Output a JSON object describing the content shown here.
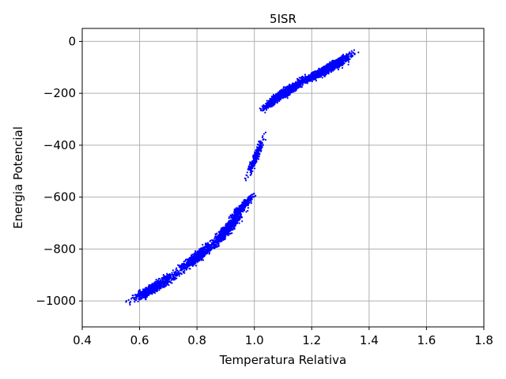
{
  "chart_data": {
    "type": "scatter",
    "title": "5ISR",
    "xlabel": "Temperatura Relativa",
    "ylabel": "Energia Potencial",
    "xlim": [
      0.4,
      1.8
    ],
    "ylim": [
      -1100,
      50
    ],
    "xticks": [
      "0.4",
      "0.6",
      "0.8",
      "1.0",
      "1.2",
      "1.4",
      "1.6",
      "1.8"
    ],
    "yticks": [
      "0",
      "−200",
      "−400",
      "−600",
      "−800",
      "−1000"
    ],
    "grid": true,
    "marker_color": "#0000ff",
    "clusters": [
      {
        "x": [
          0.53,
          0.78
        ],
        "y": [
          -1030,
          -860
        ],
        "count": 700
      },
      {
        "x": [
          0.7,
          0.9
        ],
        "y": [
          -920,
          -740
        ],
        "count": 700
      },
      {
        "x": [
          0.82,
          0.99
        ],
        "y": [
          -830,
          -620
        ],
        "count": 700
      },
      {
        "x": [
          0.9,
          1.02
        ],
        "y": [
          -700,
          -570
        ],
        "count": 300
      },
      {
        "x": [
          0.96,
          1.05
        ],
        "y": [
          -560,
          -330
        ],
        "count": 250
      },
      {
        "x": [
          1.0,
          1.15
        ],
        "y": [
          -290,
          -150
        ],
        "count": 400
      },
      {
        "x": [
          1.03,
          1.22
        ],
        "y": [
          -260,
          -110
        ],
        "count": 700
      },
      {
        "x": [
          1.13,
          1.37
        ],
        "y": [
          -180,
          -40
        ],
        "count": 700
      },
      {
        "x": [
          1.2,
          1.39
        ],
        "y": [
          -130,
          -20
        ],
        "count": 250
      }
    ]
  }
}
